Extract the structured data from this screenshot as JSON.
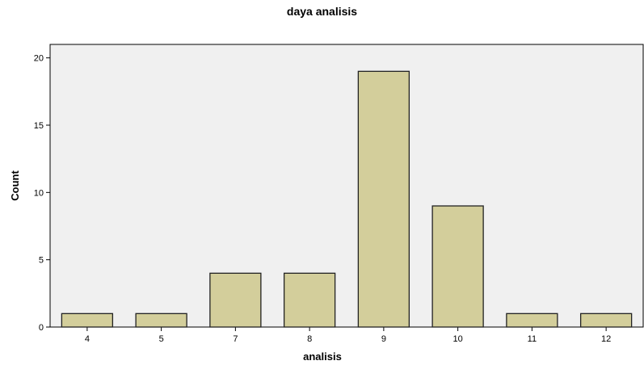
{
  "chart_data": {
    "type": "bar",
    "title": "daya analisis",
    "xlabel": "analisis",
    "ylabel": "Count",
    "categories": [
      "4",
      "5",
      "7",
      "8",
      "9",
      "10",
      "11",
      "12"
    ],
    "values": [
      1,
      1,
      4,
      4,
      19,
      9,
      1,
      1
    ],
    "ylim": [
      0,
      21
    ],
    "yticks": [
      0,
      5,
      10,
      15,
      20
    ],
    "grid": false,
    "colors": {
      "bar_fill": "#d3ce9b",
      "bar_stroke": "#222222",
      "plot_background": "#f0f0f0",
      "axis": "#000000"
    }
  }
}
